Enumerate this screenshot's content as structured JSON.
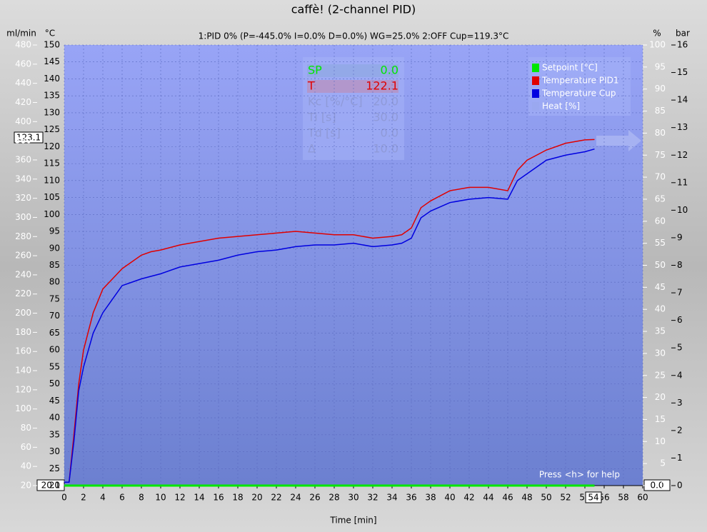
{
  "chart_data": {
    "type": "line",
    "title": "caffè! (2-channel PID)",
    "subtitle": "1:PID 0% (P=-445.0% I=0.0% D=0.0%) WG=25.0% 2:OFF Cup=119.3°C",
    "xlabel": "Time [min]",
    "ylabel": "°C",
    "y2label": "%",
    "y3label": "ml/min",
    "y4label": "bar",
    "help": "Press <h> for help",
    "xlim": [
      0,
      60
    ],
    "xticks": [
      0,
      2,
      4,
      6,
      8,
      10,
      12,
      14,
      16,
      18,
      20,
      22,
      24,
      26,
      28,
      30,
      32,
      34,
      36,
      38,
      40,
      42,
      44,
      46,
      48,
      50,
      52,
      54,
      56,
      58,
      60
    ],
    "ylim": [
      20,
      150
    ],
    "yticks": [
      20,
      25,
      30,
      35,
      40,
      45,
      50,
      55,
      60,
      65,
      70,
      75,
      80,
      85,
      90,
      95,
      100,
      105,
      110,
      115,
      120,
      125,
      130,
      135,
      140,
      145,
      150
    ],
    "y2lim": [
      0,
      100
    ],
    "y2ticks": [
      0,
      5,
      10,
      15,
      20,
      25,
      30,
      35,
      40,
      45,
      50,
      55,
      60,
      65,
      70,
      75,
      80,
      85,
      90,
      95,
      100
    ],
    "y3lim": [
      20,
      480
    ],
    "y3ticks": [
      20,
      40,
      60,
      80,
      100,
      120,
      140,
      160,
      180,
      200,
      220,
      240,
      260,
      280,
      300,
      320,
      340,
      360,
      380,
      400,
      420,
      440,
      460,
      480
    ],
    "y4lim": [
      0,
      16
    ],
    "y4ticks": [
      0,
      1,
      2,
      3,
      4,
      5,
      6,
      7,
      8,
      9,
      10,
      11,
      12,
      13,
      14,
      15,
      16
    ],
    "grid": true,
    "legend": "upper right",
    "series": [
      {
        "name": "Setpoint [°C]",
        "color": "#00e600",
        "axis": "y2",
        "x": [
          0,
          55
        ],
        "values": [
          0,
          0
        ]
      },
      {
        "name": "Temperature PID1",
        "color": "#e00000",
        "x": [
          0,
          0.5,
          1,
          1.5,
          2,
          3,
          4,
          5,
          6,
          7,
          8,
          9,
          10,
          12,
          14,
          16,
          18,
          20,
          22,
          24,
          26,
          28,
          30,
          32,
          34,
          35,
          36,
          37,
          38,
          40,
          42,
          44,
          46,
          47,
          48,
          50,
          52,
          54,
          55
        ],
        "values": [
          21,
          21,
          35,
          50,
          60,
          71,
          78,
          81,
          84,
          86,
          88,
          89,
          89.5,
          91,
          92,
          93,
          93.5,
          94,
          94.5,
          95,
          94.5,
          94,
          94,
          93,
          93.5,
          94,
          96,
          102,
          104,
          107,
          108,
          108,
          107,
          113,
          116,
          119,
          121,
          122,
          122.1
        ]
      },
      {
        "name": "Temperature Cup",
        "color": "#0000e0",
        "x": [
          0,
          0.5,
          1,
          1.5,
          2,
          3,
          4,
          5,
          6,
          7,
          8,
          10,
          12,
          14,
          16,
          18,
          20,
          22,
          24,
          26,
          28,
          30,
          32,
          34,
          35,
          36,
          37,
          38,
          40,
          42,
          44,
          46,
          47,
          48,
          50,
          52,
          54,
          55
        ],
        "values": [
          21,
          21,
          33,
          48,
          55,
          65,
          71,
          75,
          79,
          80,
          81,
          82.5,
          84.5,
          85.5,
          86.5,
          88,
          89,
          89.5,
          90.5,
          91,
          91,
          91.5,
          90.5,
          91,
          91.5,
          93,
          99,
          101,
          103.5,
          104.5,
          105,
          104.5,
          110,
          112,
          116,
          117.5,
          118.5,
          119.3
        ]
      },
      {
        "name": "Heat [%]",
        "color": "#9aa8f0",
        "axis": "y2",
        "x": [],
        "values": []
      }
    ],
    "panel": [
      {
        "label": "SP",
        "value": "0.0"
      },
      {
        "label": "T",
        "value": "122.1"
      },
      {
        "label": "Kc [%/°C]",
        "value": "20.0"
      },
      {
        "label": "Ti [s]",
        "value": "30.0"
      },
      {
        "label": "Td [s]",
        "value": "0.0"
      },
      {
        "label": "Δ",
        "value": "10.0"
      }
    ],
    "readouts": {
      "cursor_y": "123.1",
      "left": "20.1",
      "right": "0.0",
      "time": "54"
    }
  }
}
